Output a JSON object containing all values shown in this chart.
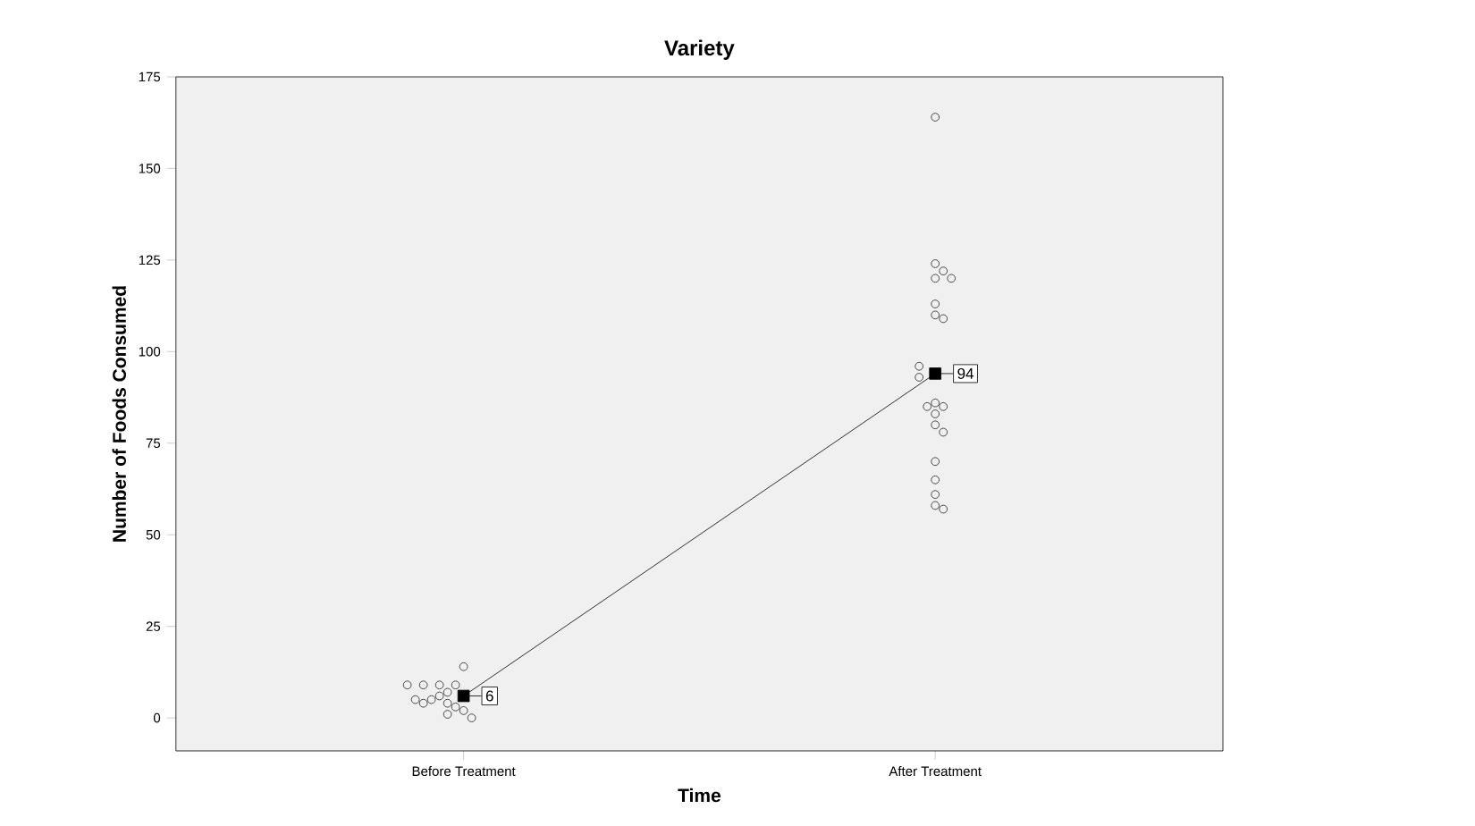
{
  "chart_data": {
    "type": "line",
    "title": "Variety",
    "xlabel": "Time",
    "ylabel": "Number of Foods Consumed",
    "categories": [
      "Before Treatment",
      "After Treatment"
    ],
    "series": [
      {
        "color": "#000000",
        "values": [
          6,
          94
        ],
        "value_labels": [
          "6",
          "94"
        ],
        "marker": "square"
      },
      {
        "type": "scatter",
        "color": "#222222",
        "marker": "circle",
        "x": [
          "Before Treatment",
          "Before Treatment",
          "Before Treatment",
          "Before Treatment",
          "Before Treatment",
          "Before Treatment",
          "Before Treatment",
          "Before Treatment",
          "Before Treatment",
          "Before Treatment",
          "Before Treatment",
          "Before Treatment",
          "Before Treatment",
          "Before Treatment",
          "Before Treatment",
          "After Treatment",
          "After Treatment",
          "After Treatment",
          "After Treatment",
          "After Treatment",
          "After Treatment",
          "After Treatment",
          "After Treatment",
          "After Treatment",
          "After Treatment",
          "After Treatment",
          "After Treatment",
          "After Treatment",
          "After Treatment",
          "After Treatment",
          "After Treatment",
          "After Treatment",
          "After Treatment",
          "After Treatment",
          "After Treatment",
          "After Treatment"
        ],
        "values": [
          14,
          9,
          9,
          9,
          9,
          7,
          6,
          5,
          5,
          4,
          4,
          3,
          2,
          1,
          0,
          164,
          124,
          122,
          120,
          120,
          113,
          110,
          109,
          96,
          93,
          86,
          85,
          85,
          83,
          80,
          78,
          70,
          65,
          61,
          58,
          57
        ]
      }
    ],
    "ylim": [
      -9,
      175
    ],
    "yticks": [
      0,
      25,
      50,
      75,
      100,
      125,
      150,
      175
    ],
    "grid": false
  }
}
